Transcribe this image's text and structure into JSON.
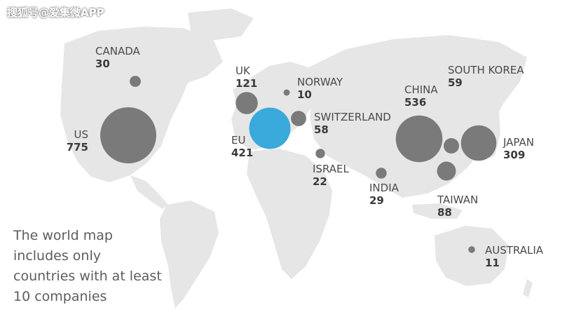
{
  "watermark": "搜狐号@爱集微APP",
  "note": "The world map includes only countries with at least 10 companies",
  "colors": {
    "land": "#e6e6e6",
    "bubble": "#7a7a7a",
    "eu": "#3aa9dc"
  },
  "chart_data": {
    "type": "bubble-map",
    "series": [
      {
        "name": "CANADA",
        "value": 30
      },
      {
        "name": "UK",
        "value": 121
      },
      {
        "name": "NORWAY",
        "value": 10
      },
      {
        "name": "SOUTH KOREA",
        "value": 59
      },
      {
        "name": "CHINA",
        "value": 536
      },
      {
        "name": "SWITZERLAND",
        "value": 58
      },
      {
        "name": "US",
        "value": 775
      },
      {
        "name": "EU",
        "value": 421
      },
      {
        "name": "JAPAN",
        "value": 309
      },
      {
        "name": "ISRAEL",
        "value": 22
      },
      {
        "name": "INDIA",
        "value": 29
      },
      {
        "name": "TAIWAN",
        "value": 88
      },
      {
        "name": "AUSTRALIA",
        "value": 11
      }
    ]
  }
}
